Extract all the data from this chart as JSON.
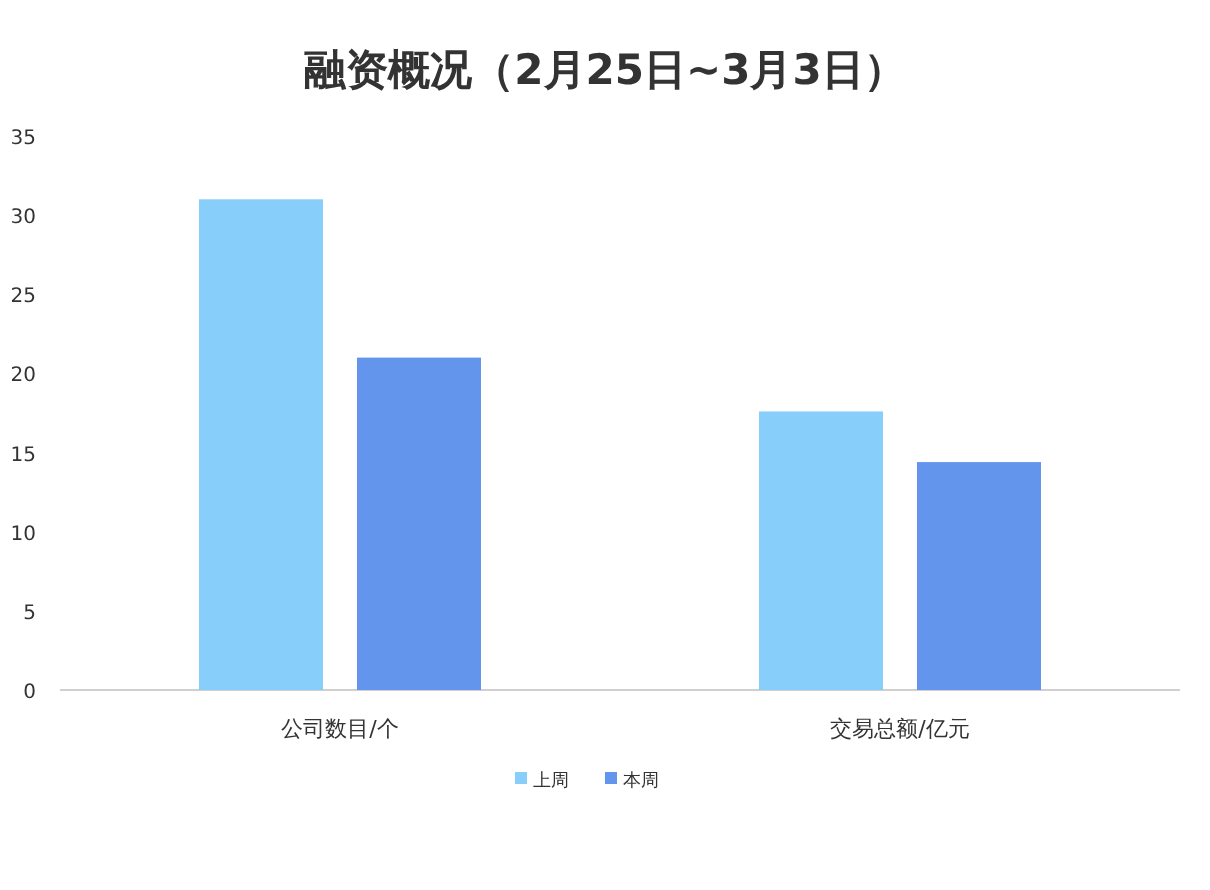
{
  "chart_data": {
    "type": "bar",
    "title": "融资概况（2月25日~3月3日）",
    "categories": [
      "公司数目/个",
      "交易总额/亿元"
    ],
    "series": [
      {
        "name": "上周",
        "color": "#87cefa",
        "values": [
          31,
          17.6
        ]
      },
      {
        "name": "本周",
        "color": "#6495ed",
        "values": [
          21,
          14.4
        ]
      }
    ],
    "ylim": [
      0,
      35
    ],
    "yticks": [
      0,
      5,
      10,
      15,
      20,
      25,
      30,
      35
    ],
    "grid": false,
    "legend": "bottom"
  }
}
